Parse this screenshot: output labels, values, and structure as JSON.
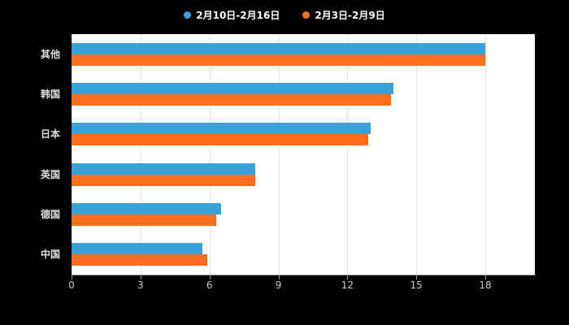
{
  "page": {
    "background_color": "#000000",
    "plot_background_color": "#ffffff"
  },
  "chart_data": {
    "type": "bar",
    "orientation": "horizontal",
    "title": "",
    "xlabel": "",
    "ylabel": "",
    "grid": true,
    "legend_position": "top",
    "categories": [
      "其他",
      "韩国",
      "日本",
      "英国",
      "德国",
      "中国"
    ],
    "series": [
      {
        "name": "2月10日-2月16日",
        "color": "#38a1d9",
        "values": [
          18,
          14,
          13,
          8,
          6.5,
          5.7
        ]
      },
      {
        "name": "2月3日-2月9日",
        "color": "#fd6e1e",
        "values": [
          18,
          13.9,
          12.9,
          8,
          6.3,
          5.9
        ]
      }
    ],
    "xticks": [
      0,
      3,
      6,
      9,
      12,
      15,
      18
    ],
    "xlim": [
      0,
      20.2
    ]
  },
  "colors": {
    "gridline": "#e4e4e4",
    "axis": "#999999",
    "tick_label": "#c9c9c9",
    "category_label": "#e0e0e0",
    "legend_label": "#ffffff"
  }
}
